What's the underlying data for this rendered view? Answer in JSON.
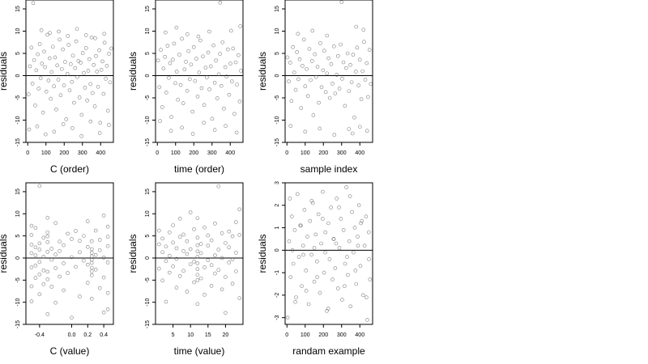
{
  "colors": {
    "point": "#555555",
    "frame": "#000000",
    "zero_line": "#000000"
  },
  "chart_data": [
    {
      "type": "scatter",
      "xlabel": "C (order)",
      "ylabel": "residuals",
      "xlim": [
        -10,
        470
      ],
      "ylim": [
        -15,
        17
      ],
      "xticks": [
        0,
        100,
        200,
        300,
        400
      ],
      "xtick_labels": [
        "0",
        "100",
        "200",
        "300",
        "400"
      ],
      "yticks": [
        -15,
        -10,
        -5,
        0,
        5,
        10,
        15
      ],
      "ytick_labels": [
        "-15",
        "-10",
        "-5",
        "0",
        "5",
        "10",
        "15"
      ],
      "hline": 0,
      "x": [
        5,
        12,
        20,
        26,
        35,
        41,
        47,
        55,
        60,
        66,
        71,
        78,
        84,
        90,
        95,
        102,
        108,
        114,
        120,
        126,
        131,
        138,
        144,
        150,
        156,
        162,
        168,
        175,
        181,
        187,
        193,
        199,
        205,
        211,
        218,
        224,
        230,
        236,
        242,
        248,
        254,
        260,
        266,
        272,
        278,
        284,
        290,
        296,
        302,
        308,
        314,
        320,
        326,
        332,
        338,
        344,
        350,
        356,
        362,
        368,
        374,
        380,
        386,
        392,
        398,
        404,
        410,
        416,
        422,
        428,
        434,
        440,
        446,
        452,
        458,
        8,
        30,
        52,
        75,
        98,
        121,
        145,
        170,
        195,
        220,
        245,
        270,
        295,
        320,
        345,
        370,
        395,
        420,
        445
      ],
      "y": [
        -4.2,
        2.1,
        6.3,
        -1.8,
        3.5,
        -6.7,
        1.2,
        4.8,
        -2.9,
        7.1,
        -0.6,
        2.7,
        -8.3,
        5.4,
        1.9,
        -3.6,
        9.2,
        -1.1,
        3.9,
        -5.2,
        0.8,
        6.5,
        -2.4,
        4.1,
        -7.6,
        2.3,
        -0.9,
        8.1,
        -4.4,
        1.5,
        5.9,
        -2.2,
        3.1,
        -9.8,
        0.4,
        6.9,
        -3.3,
        2.6,
        -1.4,
        4.5,
        -6.1,
        1.7,
        7.7,
        -0.3,
        3.3,
        -4.9,
        2.9,
        -8.8,
        5.1,
        0.6,
        -2.7,
        6.2,
        -5.6,
        1.1,
        3.7,
        -1.9,
        8.6,
        -3.9,
        2.4,
        -6.9,
        4.4,
        0.9,
        -2.5,
        5.7,
        -10.6,
        1.3,
        3.2,
        -4.1,
        7.4,
        -0.7,
        2.2,
        -7.9,
        4.9,
        -1.5,
        6.1,
        -12.1,
        16.3,
        -11.4,
        10.2,
        -13.2,
        9.6,
        -12.6,
        9.9,
        -10.9,
        8.9,
        -11.8,
        10.5,
        -13.6,
        9.1,
        -10.3,
        8.4,
        -12.9,
        9.4,
        -11.1
      ]
    },
    {
      "type": "scatter",
      "xlabel": "time (order)",
      "ylabel": "residuals",
      "xlim": [
        -10,
        470
      ],
      "ylim": [
        -15,
        17
      ],
      "xticks": [
        0,
        100,
        200,
        300,
        400
      ],
      "xtick_labels": [
        "0",
        "100",
        "200",
        "300",
        "400"
      ],
      "yticks": [
        -15,
        -10,
        -5,
        0,
        5,
        10,
        15
      ],
      "ytick_labels": [
        "-15",
        "-10",
        "-5",
        "0",
        "5",
        "10",
        "15"
      ],
      "hline": 0,
      "x": [
        4,
        11,
        19,
        27,
        34,
        42,
        49,
        56,
        63,
        70,
        77,
        85,
        92,
        99,
        106,
        113,
        121,
        128,
        135,
        142,
        149,
        157,
        164,
        171,
        178,
        185,
        193,
        200,
        207,
        214,
        221,
        229,
        236,
        243,
        250,
        257,
        265,
        272,
        279,
        286,
        293,
        301,
        308,
        315,
        322,
        329,
        337,
        344,
        351,
        358,
        365,
        373,
        380,
        387,
        394,
        401,
        409,
        416,
        423,
        430,
        437,
        445,
        452,
        459,
        15,
        45,
        75,
        105,
        135,
        165,
        195,
        225,
        255,
        285,
        315,
        345,
        375,
        405,
        435,
        455
      ],
      "y": [
        3.4,
        -2.6,
        5.8,
        -7.1,
        1.6,
        4.2,
        -3.8,
        6.7,
        -0.5,
        2.8,
        -9.3,
        3.6,
        7.2,
        -1.7,
        0.9,
        -5.4,
        4.7,
        -2.1,
        8.3,
        -6.2,
        1.4,
        3.1,
        -3.4,
        5.5,
        -0.8,
        2.5,
        -8.1,
        6.4,
        -1.2,
        3.8,
        -4.7,
        0.7,
        7.9,
        -2.8,
        4.3,
        -6.6,
        1.8,
        -0.4,
        5.2,
        -3.1,
        2.1,
        -9.7,
        6.8,
        -1.6,
        3.4,
        -5.1,
        0.3,
        4.9,
        -2.3,
        7.5,
        -7.4,
        1.9,
        -0.2,
        5.9,
        -4.3,
        2.7,
        -1.3,
        6.1,
        -8.6,
        3.0,
        -2.0,
        4.6,
        -5.8,
        1.1,
        -10.2,
        9.7,
        -12.4,
        10.8,
        -11.7,
        9.3,
        -13.1,
        8.8,
        -10.6,
        9.9,
        -12.2,
        16.4,
        -11.3,
        10.1,
        -12.8,
        11.1
      ]
    },
    {
      "type": "scatter",
      "xlabel": "sample index",
      "ylabel": "residuals",
      "xlim": [
        -10,
        470
      ],
      "ylim": [
        -15,
        17
      ],
      "xticks": [
        0,
        100,
        200,
        300,
        400
      ],
      "xtick_labels": [
        "0",
        "100",
        "200",
        "300",
        "400"
      ],
      "yticks": [
        -15,
        -10,
        -5,
        0,
        5,
        10,
        15
      ],
      "ytick_labels": [
        "-15",
        "-10",
        "-5",
        "0",
        "5",
        "10",
        "15"
      ],
      "hline": 0,
      "x": [
        3,
        10,
        18,
        25,
        33,
        40,
        48,
        55,
        63,
        70,
        78,
        85,
        93,
        100,
        108,
        115,
        123,
        130,
        138,
        145,
        153,
        160,
        168,
        175,
        183,
        190,
        198,
        205,
        213,
        220,
        228,
        235,
        243,
        250,
        258,
        265,
        273,
        280,
        288,
        295,
        303,
        310,
        318,
        325,
        333,
        340,
        348,
        355,
        363,
        370,
        378,
        385,
        393,
        400,
        408,
        415,
        423,
        430,
        438,
        445,
        453,
        460,
        20,
        60,
        100,
        140,
        180,
        220,
        260,
        300,
        340,
        360,
        380,
        400,
        420,
        440
      ],
      "y": [
        4.1,
        -1.3,
        2.9,
        -5.7,
        6.4,
        0.7,
        -3.2,
        5.3,
        -0.8,
        3.7,
        -7.3,
        2.2,
        8.1,
        -2.4,
        1.5,
        -4.6,
        6.0,
        -1.0,
        3.3,
        -8.9,
        4.8,
        -0.3,
        2.0,
        -6.1,
        7.3,
        -2.6,
        1.2,
        5.6,
        -3.7,
        0.5,
        3.9,
        -5.0,
        2.6,
        -1.8,
        6.6,
        -4.0,
        0.2,
        4.4,
        -2.9,
        7.0,
        -0.7,
        3.0,
        -6.8,
        1.7,
        5.0,
        -3.5,
        2.4,
        -1.5,
        4.7,
        -9.4,
        0.9,
        6.3,
        -2.2,
        3.6,
        -5.3,
        1.0,
        7.6,
        -0.9,
        2.8,
        -4.8,
        5.8,
        -1.9,
        -11.3,
        9.4,
        -12.6,
        10.1,
        -11.9,
        9.0,
        -13.3,
        16.5,
        -12.0,
        -13.0,
        11.0,
        -11.5,
        10.3,
        -12.4
      ]
    },
    {
      "type": "scatter",
      "xlabel": "C (value)",
      "ylabel": "residuals",
      "xlim": [
        -0.57,
        0.52
      ],
      "ylim": [
        -15,
        17
      ],
      "xticks": [
        -0.4,
        0.0,
        0.2,
        0.4
      ],
      "xtick_labels": [
        "-0.4",
        "0.0",
        "0.2",
        "0.4"
      ],
      "yticks": [
        -15,
        -10,
        -5,
        0,
        5,
        10,
        15
      ],
      "ytick_labels": [
        "-15",
        "-10",
        "-5",
        "0",
        "5",
        "10",
        "15"
      ],
      "hline": 0,
      "x": [
        -0.5,
        -0.5,
        -0.5,
        -0.5,
        -0.5,
        -0.5,
        -0.5,
        -0.45,
        -0.45,
        -0.45,
        -0.45,
        -0.45,
        -0.4,
        -0.4,
        -0.4,
        -0.4,
        -0.4,
        -0.4,
        -0.35,
        -0.35,
        -0.35,
        -0.35,
        -0.3,
        -0.3,
        -0.3,
        -0.3,
        -0.3,
        -0.3,
        -0.3,
        -0.3,
        -0.25,
        -0.25,
        -0.25,
        -0.2,
        -0.2,
        -0.2,
        -0.2,
        -0.15,
        -0.15,
        -0.15,
        -0.1,
        -0.1,
        -0.1,
        -0.05,
        -0.05,
        0.0,
        0.0,
        0.0,
        0.05,
        0.05,
        0.1,
        0.1,
        0.1,
        0.15,
        0.15,
        0.2,
        0.2,
        0.2,
        0.2,
        0.25,
        0.25,
        0.25,
        0.25,
        0.25,
        0.25,
        0.25,
        0.25,
        0.25,
        0.25,
        0.3,
        0.3,
        0.3,
        0.35,
        0.35,
        0.35,
        0.4,
        0.4,
        0.4,
        0.4,
        0.45,
        0.45,
        0.45,
        0.45,
        0.45,
        0.45
      ],
      "y": [
        5.2,
        -2.1,
        3.0,
        -6.4,
        1.1,
        -9.8,
        7.3,
        2.4,
        -4.5,
        0.6,
        -1.7,
        6.8,
        3.3,
        -0.9,
        -3.7,
        16.3,
        -8.2,
        1.9,
        4.6,
        -2.8,
        0.3,
        -5.9,
        9.1,
        5.8,
        4.9,
        3.6,
        -3.1,
        -4.8,
        -12.7,
        1.4,
        2.1,
        -6.5,
        -0.4,
        7.9,
        -2.3,
        0.8,
        -10.1,
        3.7,
        -4.2,
        1.6,
        -7.3,
        2.9,
        -1.2,
        5.5,
        -3.4,
        -13.5,
        0.2,
        4.3,
        -2.0,
        6.1,
        -8.7,
        1.3,
        3.9,
        -0.6,
        5.0,
        -5.6,
        2.5,
        -1.5,
        8.3,
        2.0,
        1.2,
        0.4,
        -0.4,
        -1.1,
        -2.2,
        -3.0,
        3.8,
        -3.9,
        -9.2,
        6.2,
        -2.6,
        0.7,
        4.1,
        -6.8,
        1.8,
        -4.4,
        0.1,
        9.6,
        -12.3,
        4.8,
        -1.0,
        2.7,
        -7.9,
        7.1,
        -11.6
      ]
    },
    {
      "type": "scatter",
      "xlabel": "time (value)",
      "ylabel": "residuals",
      "xlim": [
        0,
        25
      ],
      "ylim": [
        -15,
        17
      ],
      "xticks": [
        5,
        10,
        15,
        20
      ],
      "xtick_labels": [
        "5",
        "10",
        "15",
        "20"
      ],
      "yticks": [
        -15,
        -10,
        -5,
        0,
        5,
        10,
        15
      ],
      "ytick_labels": [
        "-15",
        "-10",
        "-5",
        "0",
        "5",
        "10",
        "15"
      ],
      "hline": 0,
      "x": [
        1,
        1,
        1,
        2,
        2,
        2,
        3,
        3,
        3,
        4,
        4,
        4,
        5,
        5,
        5,
        6,
        6,
        6,
        7,
        7,
        7,
        8,
        8,
        8,
        9,
        9,
        9,
        10,
        10,
        10,
        11,
        11,
        11,
        12,
        12,
        12,
        12,
        12,
        12,
        12,
        12,
        12,
        12,
        13,
        13,
        13,
        14,
        14,
        14,
        15,
        15,
        15,
        16,
        16,
        16,
        17,
        17,
        17,
        18,
        18,
        18,
        19,
        19,
        19,
        20,
        20,
        20,
        21,
        21,
        21,
        22,
        22,
        22,
        23,
        23,
        23,
        24,
        24,
        24
      ],
      "y": [
        3.1,
        -2.4,
        6.2,
        -5.1,
        1.3,
        4.4,
        -0.7,
        2.6,
        -9.9,
        5.8,
        -3.3,
        0.5,
        7.4,
        -1.9,
        3.5,
        -6.7,
        2.2,
        -0.2,
        4.8,
        -4.1,
        8.9,
        1.6,
        -2.9,
        5.3,
        -7.6,
        0.9,
        3.8,
        10.3,
        -1.4,
        2.0,
        -5.5,
        6.5,
        -0.8,
        4.6,
        2.9,
        1.5,
        0.3,
        -1.2,
        -2.5,
        -3.8,
        -5.0,
        -10.4,
        9.0,
        3.2,
        -4.6,
        1.1,
        6.9,
        -2.1,
        -8.3,
        5.1,
        -0.5,
        2.8,
        -6.3,
        4.0,
        -1.6,
        7.8,
        -3.5,
        0.6,
        16.2,
        -2.7,
        1.9,
        5.6,
        -7.1,
        0.0,
        -4.3,
        3.4,
        -12.4,
        6.0,
        -1.0,
        2.4,
        -5.8,
        4.9,
        -0.3,
        8.1,
        -3.0,
        1.2,
        -9.1,
        5.2,
        11.0
      ]
    },
    {
      "type": "scatter",
      "xlabel": "randam example",
      "ylabel": "residuals",
      "xlim": [
        -10,
        470
      ],
      "ylim": [
        -3.3,
        3.0
      ],
      "xticks": [
        0,
        100,
        200,
        300,
        400
      ],
      "xtick_labels": [
        "0",
        "100",
        "200",
        "300",
        "400"
      ],
      "yticks": [
        -3,
        -2,
        -1,
        0,
        1,
        2,
        3
      ],
      "ytick_labels": [
        "-3",
        "-2",
        "-1",
        "0",
        "1",
        "2",
        "3"
      ],
      "hline": 0,
      "x": [
        4,
        12,
        20,
        27,
        35,
        43,
        50,
        58,
        66,
        73,
        81,
        89,
        96,
        104,
        112,
        119,
        127,
        135,
        142,
        150,
        158,
        165,
        173,
        181,
        188,
        196,
        204,
        211,
        219,
        227,
        234,
        242,
        250,
        257,
        265,
        273,
        280,
        288,
        296,
        303,
        311,
        319,
        326,
        334,
        342,
        349,
        357,
        365,
        372,
        380,
        388,
        395,
        403,
        411,
        418,
        426,
        434,
        441,
        449,
        456,
        16,
        46,
        76,
        106,
        136,
        166,
        196,
        226,
        256,
        286,
        316,
        346,
        376,
        406,
        436,
        30,
        90,
        150,
        210,
        270,
        330,
        390,
        450
      ],
      "y": [
        -3.0,
        0.4,
        -1.2,
        1.5,
        -0.6,
        0.9,
        -2.1,
        2.5,
        -0.3,
        1.1,
        -1.6,
        0.2,
        1.8,
        -0.9,
        0.6,
        -2.4,
        1.3,
        -0.2,
        2.1,
        -1.4,
        0.7,
        -0.5,
        1.6,
        -1.9,
        0.3,
        2.6,
        -1.0,
        0.8,
        -2.7,
        1.2,
        -0.4,
        1.9,
        -1.3,
        0.5,
        -0.8,
        2.3,
        -1.7,
        0.1,
        1.4,
        -2.2,
        0.9,
        -0.6,
        2.8,
        -1.1,
        0.4,
        -2.5,
        1.7,
        -0.1,
        1.0,
        -1.5,
        0.6,
        2.0,
        -0.7,
        1.3,
        -2.0,
        0.2,
        1.5,
        -3.1,
        0.8,
        -1.3,
        2.3,
        -2.3,
        1.1,
        -1.8,
        2.2,
        -1.2,
        1.4,
        -2.6,
        0.5,
        1.9,
        -1.6,
        2.4,
        -0.9,
        1.2,
        -2.1,
        0.0,
        -0.2,
        0.1,
        -0.1,
        0.3,
        -0.3,
        0.2,
        -0.4
      ]
    }
  ]
}
